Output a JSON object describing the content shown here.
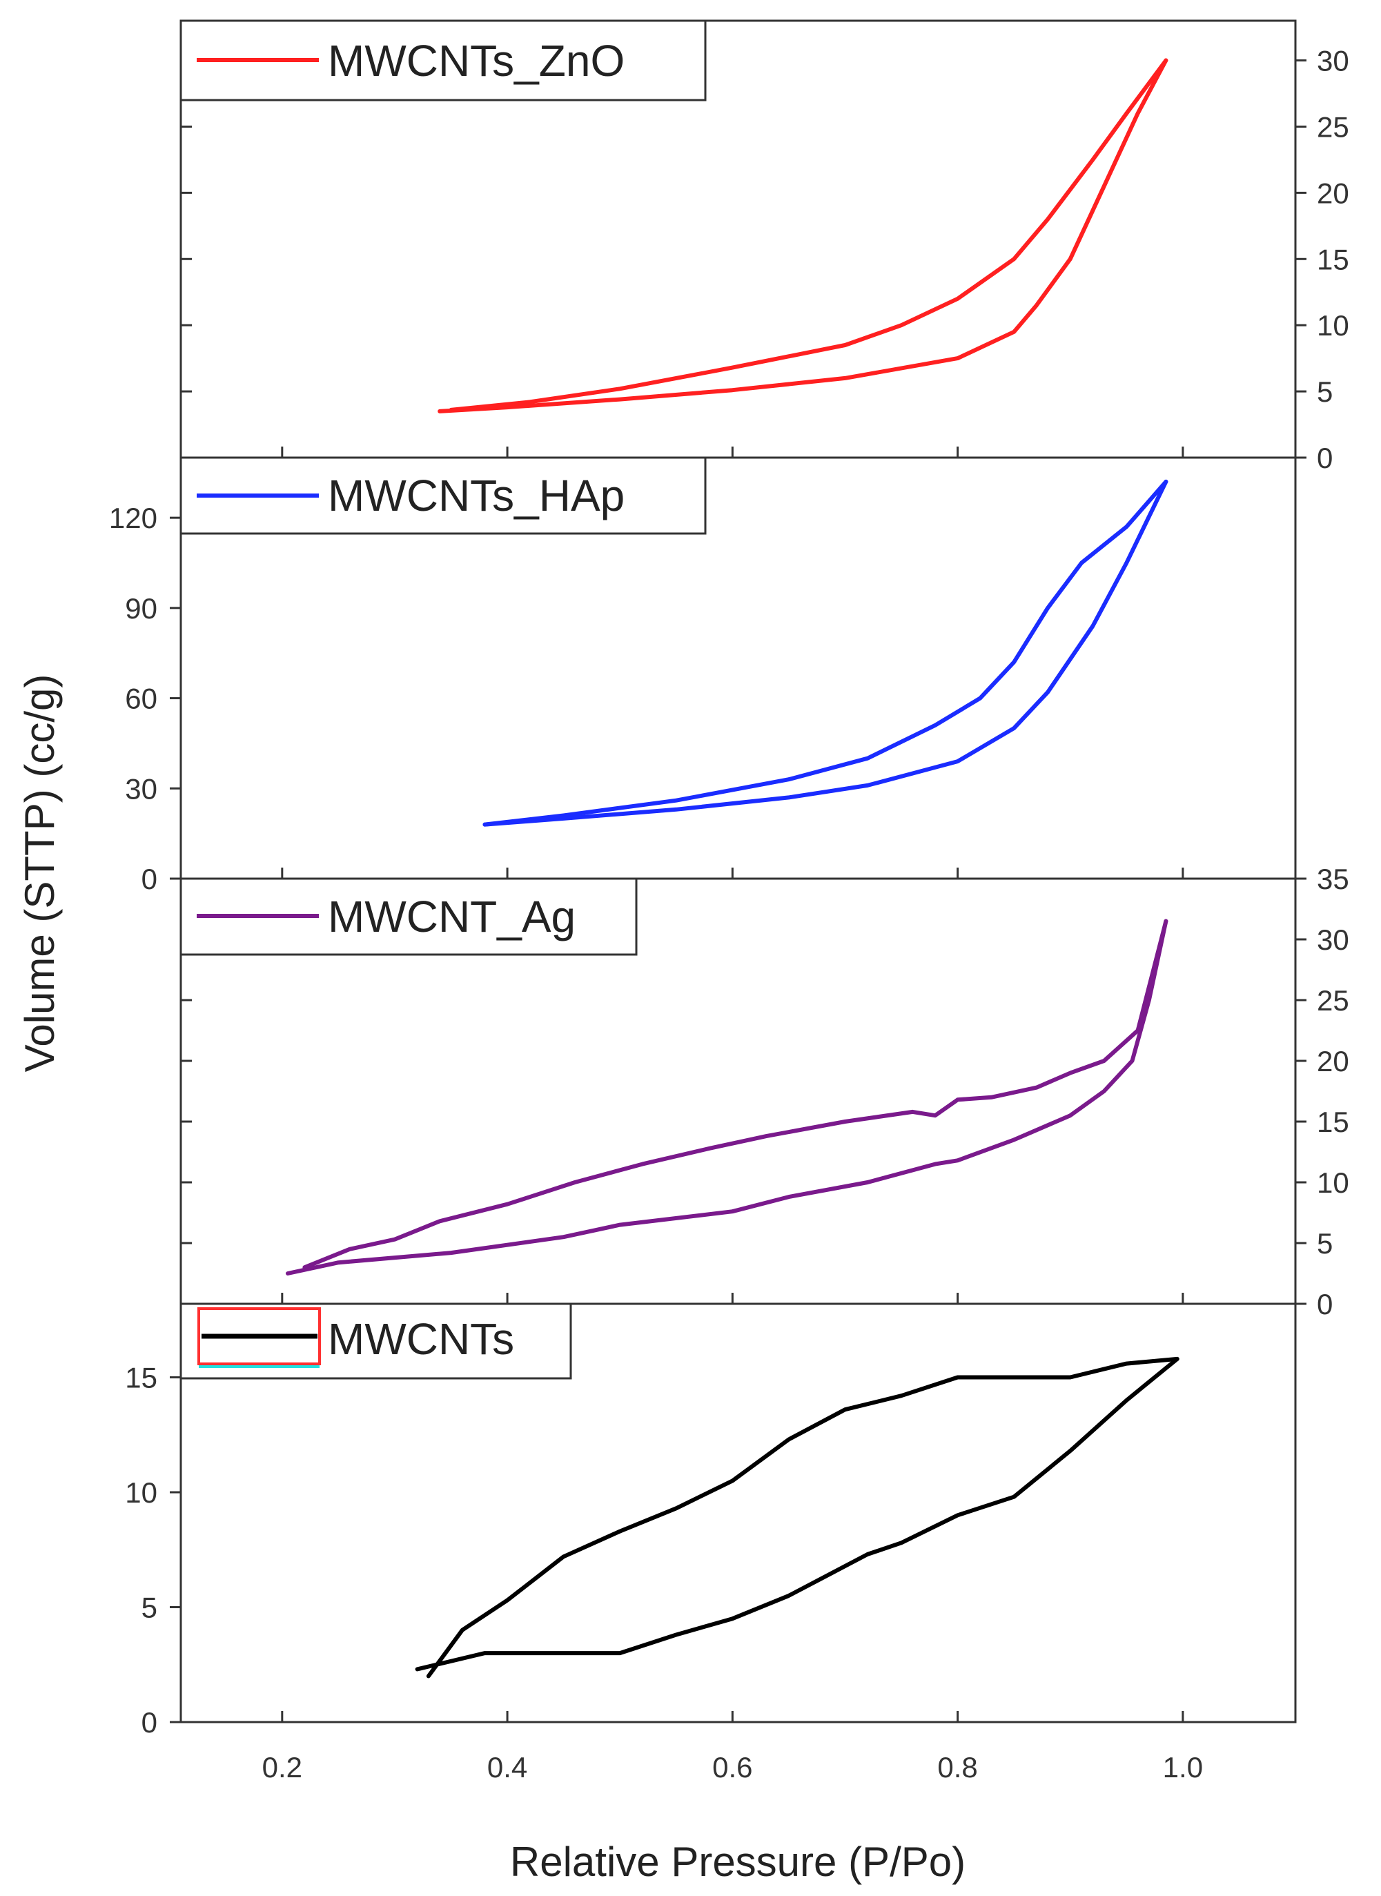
{
  "chart_data": {
    "type": "line",
    "xlabel": "Relative Pressure (P/Po)",
    "ylabel": "Volume (STTP) (cc/g)",
    "xlim": [
      0.11,
      1.1
    ],
    "x_ticks": [
      "0.2",
      "0.4",
      "0.6",
      "0.8",
      "1.0"
    ],
    "x_tick_values": [
      0.2,
      0.4,
      0.6,
      0.8,
      1.0
    ],
    "panels": [
      {
        "name": "MWCNTs_ZnO",
        "legend": "MWCNTs_ZnO",
        "color": "#ff2020",
        "y_axis_side": "right",
        "ylim": [
          0,
          33
        ],
        "y_ticks": [
          "0",
          "5",
          "10",
          "15",
          "20",
          "25",
          "30"
        ],
        "y_tick_values": [
          0,
          5,
          10,
          15,
          20,
          25,
          30
        ],
        "adsorption": [
          [
            0.34,
            3.5
          ],
          [
            0.4,
            3.8
          ],
          [
            0.5,
            4.4
          ],
          [
            0.6,
            5.1
          ],
          [
            0.7,
            6.0
          ],
          [
            0.8,
            7.5
          ],
          [
            0.85,
            9.5
          ],
          [
            0.87,
            11.5
          ],
          [
            0.9,
            15.0
          ],
          [
            0.93,
            20.5
          ],
          [
            0.96,
            26.0
          ],
          [
            0.985,
            30.0
          ]
        ],
        "desorption": [
          [
            0.985,
            30.0
          ],
          [
            0.95,
            26.0
          ],
          [
            0.92,
            22.5
          ],
          [
            0.88,
            18.0
          ],
          [
            0.85,
            15.0
          ],
          [
            0.8,
            12.0
          ],
          [
            0.75,
            10.0
          ],
          [
            0.7,
            8.5
          ],
          [
            0.6,
            6.8
          ],
          [
            0.5,
            5.2
          ],
          [
            0.42,
            4.2
          ],
          [
            0.35,
            3.6
          ]
        ]
      },
      {
        "name": "MWCNTs_HAp",
        "legend": "MWCNTs_HAp",
        "color": "#1a2cff",
        "y_axis_side": "left",
        "ylim": [
          0,
          140
        ],
        "y_ticks": [
          "0",
          "30",
          "60",
          "90",
          "120"
        ],
        "y_tick_values": [
          0,
          30,
          60,
          90,
          120
        ],
        "adsorption": [
          [
            0.38,
            18
          ],
          [
            0.45,
            20
          ],
          [
            0.55,
            23
          ],
          [
            0.65,
            27
          ],
          [
            0.72,
            31
          ],
          [
            0.8,
            39
          ],
          [
            0.85,
            50
          ],
          [
            0.88,
            62
          ],
          [
            0.92,
            84
          ],
          [
            0.95,
            105
          ],
          [
            0.985,
            132
          ]
        ],
        "desorption": [
          [
            0.985,
            132
          ],
          [
            0.95,
            117
          ],
          [
            0.91,
            105
          ],
          [
            0.88,
            90
          ],
          [
            0.85,
            72
          ],
          [
            0.82,
            60
          ],
          [
            0.78,
            51
          ],
          [
            0.72,
            40
          ],
          [
            0.65,
            33
          ],
          [
            0.55,
            26
          ],
          [
            0.45,
            21
          ],
          [
            0.38,
            18
          ]
        ]
      },
      {
        "name": "MWCNT_Ag",
        "legend": "MWCNT_Ag",
        "color": "#7a1a8c",
        "y_axis_side": "right",
        "ylim": [
          0,
          35
        ],
        "y_ticks": [
          "0",
          "5",
          "10",
          "15",
          "20",
          "25",
          "30",
          "35"
        ],
        "y_tick_values": [
          0,
          5,
          10,
          15,
          20,
          25,
          30,
          35
        ],
        "adsorption": [
          [
            0.205,
            2.5
          ],
          [
            0.25,
            3.4
          ],
          [
            0.35,
            4.2
          ],
          [
            0.45,
            5.5
          ],
          [
            0.5,
            6.5
          ],
          [
            0.6,
            7.6
          ],
          [
            0.65,
            8.8
          ],
          [
            0.72,
            10.0
          ],
          [
            0.78,
            11.5
          ],
          [
            0.8,
            11.8
          ],
          [
            0.85,
            13.5
          ],
          [
            0.9,
            15.5
          ],
          [
            0.93,
            17.5
          ],
          [
            0.955,
            20.0
          ],
          [
            0.97,
            25.0
          ],
          [
            0.985,
            31.5
          ]
        ],
        "desorption": [
          [
            0.985,
            31.5
          ],
          [
            0.96,
            22.5
          ],
          [
            0.93,
            20.0
          ],
          [
            0.9,
            19.0
          ],
          [
            0.87,
            17.8
          ],
          [
            0.83,
            17.0
          ],
          [
            0.8,
            16.8
          ],
          [
            0.78,
            15.5
          ],
          [
            0.76,
            15.8
          ],
          [
            0.7,
            15.0
          ],
          [
            0.63,
            13.8
          ],
          [
            0.58,
            12.8
          ],
          [
            0.52,
            11.5
          ],
          [
            0.46,
            10.0
          ],
          [
            0.4,
            8.2
          ],
          [
            0.34,
            6.8
          ],
          [
            0.3,
            5.3
          ],
          [
            0.26,
            4.5
          ],
          [
            0.22,
            3.0
          ]
        ]
      },
      {
        "name": "MWCNTs",
        "legend": "MWCNTs",
        "color": "#000000",
        "y_axis_side": "left",
        "ylim": [
          0,
          18.2
        ],
        "y_ticks": [
          "0",
          "5",
          "10",
          "15"
        ],
        "y_tick_values": [
          0,
          5,
          10,
          15
        ],
        "adsorption": [
          [
            0.32,
            2.3
          ],
          [
            0.38,
            3.0
          ],
          [
            0.5,
            3.0
          ],
          [
            0.55,
            3.8
          ],
          [
            0.6,
            4.5
          ],
          [
            0.65,
            5.5
          ],
          [
            0.72,
            7.3
          ],
          [
            0.75,
            7.8
          ],
          [
            0.8,
            9.0
          ],
          [
            0.85,
            9.8
          ],
          [
            0.9,
            11.8
          ],
          [
            0.95,
            14.0
          ],
          [
            0.995,
            15.8
          ]
        ],
        "desorption": [
          [
            0.995,
            15.8
          ],
          [
            0.95,
            15.6
          ],
          [
            0.9,
            15.0
          ],
          [
            0.8,
            15.0
          ],
          [
            0.75,
            14.2
          ],
          [
            0.7,
            13.6
          ],
          [
            0.65,
            12.3
          ],
          [
            0.6,
            10.5
          ],
          [
            0.55,
            9.3
          ],
          [
            0.5,
            8.3
          ],
          [
            0.45,
            7.2
          ],
          [
            0.4,
            5.3
          ],
          [
            0.36,
            4.0
          ],
          [
            0.33,
            2.0
          ]
        ]
      }
    ]
  }
}
